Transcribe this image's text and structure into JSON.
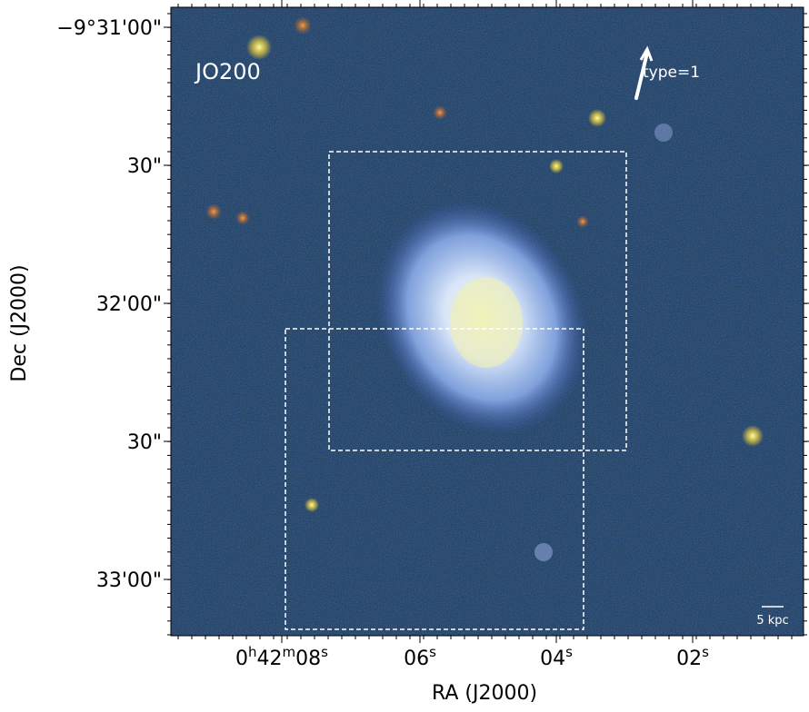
{
  "panel_label": "JO200",
  "annotation": "type=1",
  "scale_bar": "5 kpc",
  "x_axis": {
    "label": "RA (J2000)",
    "ticks": [
      [
        "0",
        "h",
        "42",
        "m",
        "08",
        "s"
      ],
      [
        "06",
        "s"
      ],
      [
        "04",
        "s"
      ],
      [
        "02",
        "s"
      ]
    ]
  },
  "y_axis": {
    "label": "Dec (J2000)",
    "ticks": [
      "−9°31'00\"",
      "30\"",
      "32'00\"",
      "30\"",
      "33'00\""
    ]
  }
}
